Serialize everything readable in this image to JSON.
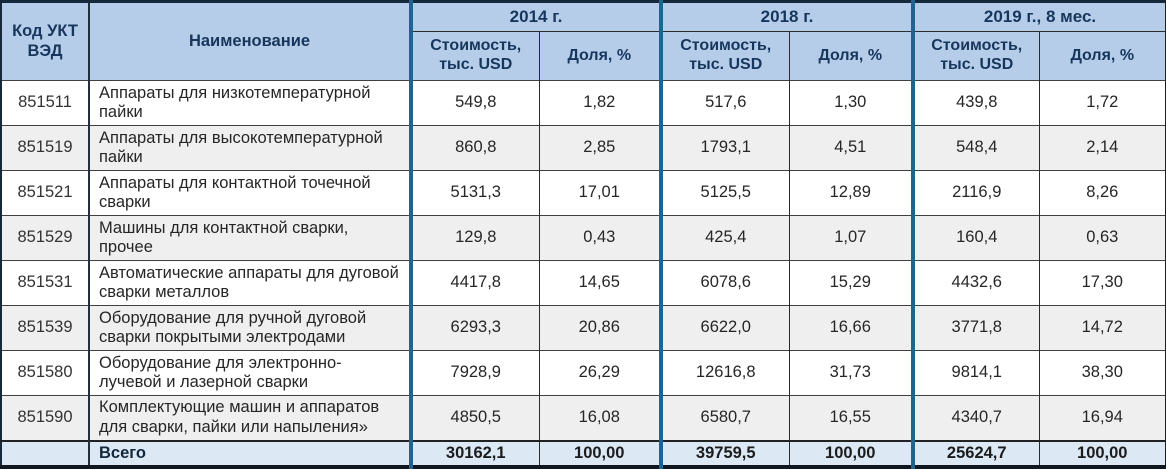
{
  "colors": {
    "header_bg": "#b5cde8",
    "total_row_bg": "#dce9f5",
    "alt_row_bg": "#efefef",
    "group_divider": "#1e6493",
    "header_text": "#17365d",
    "body_text": "#262626"
  },
  "table": {
    "columns": {
      "code": "Код УКТ ВЭД",
      "name": "Наименование",
      "groups": [
        {
          "label": "2014 г."
        },
        {
          "label": "2018 г."
        },
        {
          "label": "2019 г., 8 мес."
        }
      ],
      "value_label": "Стоимость, тыс. USD",
      "share_label": "Доля, %"
    },
    "rows": [
      {
        "code": "851511",
        "name": "Аппараты для низкотемпературной пайки",
        "values": [
          "549,8",
          "1,82",
          "517,6",
          "1,30",
          "439,8",
          "1,72"
        ]
      },
      {
        "code": "851519",
        "name": "Аппараты для высокотемпературной пайки",
        "values": [
          "860,8",
          "2,85",
          "1793,1",
          "4,51",
          "548,4",
          "2,14"
        ]
      },
      {
        "code": "851521",
        "name": "Аппараты для контактной точечной сварки",
        "values": [
          "5131,3",
          "17,01",
          "5125,5",
          "12,89",
          "2116,9",
          "8,26"
        ]
      },
      {
        "code": "851529",
        "name": "Машины для контактной сварки, прочее",
        "values": [
          "129,8",
          "0,43",
          "425,4",
          "1,07",
          "160,4",
          "0,63"
        ]
      },
      {
        "code": "851531",
        "name": "Автоматические аппараты для дуговой сварки металлов",
        "values": [
          "4417,8",
          "14,65",
          "6078,6",
          "15,29",
          "4432,6",
          "17,30"
        ]
      },
      {
        "code": "851539",
        "name": "Оборудование для ручной дуговой сварки покрытыми электродами",
        "values": [
          "6293,3",
          "20,86",
          "6622,0",
          "16,66",
          "3771,8",
          "14,72"
        ]
      },
      {
        "code": "851580",
        "name": "Оборудование для электронно-лучевой и лазерной сварки",
        "values": [
          "7928,9",
          "26,29",
          "12616,8",
          "31,73",
          "9814,1",
          "38,30"
        ]
      },
      {
        "code": "851590",
        "name": "Комплектующие машин и аппаратов для сварки, пайки или напыления»",
        "values": [
          "4850,5",
          "16,08",
          "6580,7",
          "16,55",
          "4340,7",
          "16,94"
        ]
      }
    ],
    "total": {
      "label": "Всего",
      "values": [
        "30162,1",
        "100,00",
        "39759,5",
        "100,00",
        "25624,7",
        "100,00"
      ]
    }
  }
}
